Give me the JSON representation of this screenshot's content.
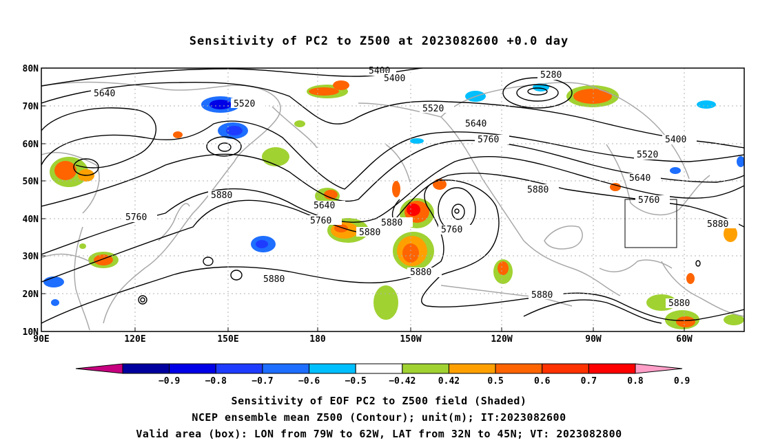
{
  "title": "Sensitivity of PC2 to Z500 at 2023082600 +0.0 day",
  "map": {
    "lat_labels": [
      "80N",
      "70N",
      "60N",
      "50N",
      "40N",
      "30N",
      "20N",
      "10N"
    ],
    "lon_labels": [
      "90E",
      "120E",
      "150E",
      "180",
      "150W",
      "120W",
      "90W",
      "60W"
    ],
    "contour_labels": [
      "5280",
      "5400",
      "5400",
      "5400",
      "5520",
      "5520",
      "5520",
      "5640",
      "5640",
      "5640",
      "5640",
      "5760",
      "5760",
      "5760",
      "5760",
      "5760",
      "5880",
      "5880",
      "5880",
      "5880",
      "5880",
      "5880",
      "5880",
      "5880",
      "5880"
    ],
    "valid_box_label": "valid area box"
  },
  "colorbar": {
    "labels": [
      "−0.9",
      "−0.8",
      "−0.7",
      "−0.6",
      "−0.5",
      "−0.42",
      "0.42",
      "0.5",
      "0.6",
      "0.7",
      "0.8",
      "0.9"
    ],
    "colors": [
      "#c7007f",
      "#00009e",
      "#0000e6",
      "#1e3cff",
      "#1e6eff",
      "#00bfff",
      "#ffffff",
      "#a0d232",
      "#ffa000",
      "#ff6400",
      "#ff3200",
      "#ff0000",
      "#ff9fc8"
    ]
  },
  "captions": {
    "line1": "Sensitivity of EOF PC2 to Z500 field (Shaded)",
    "line2": "NCEP ensemble mean Z500 (Contour); unit(m); IT:2023082600",
    "line3": "Valid area (box): LON from 79W to 62W, LAT from 32N to 45N; VT: 2023082800"
  },
  "colors": {
    "coast": "#a8a8a8",
    "contour": "#000000",
    "grid": "#b0b0b0"
  }
}
